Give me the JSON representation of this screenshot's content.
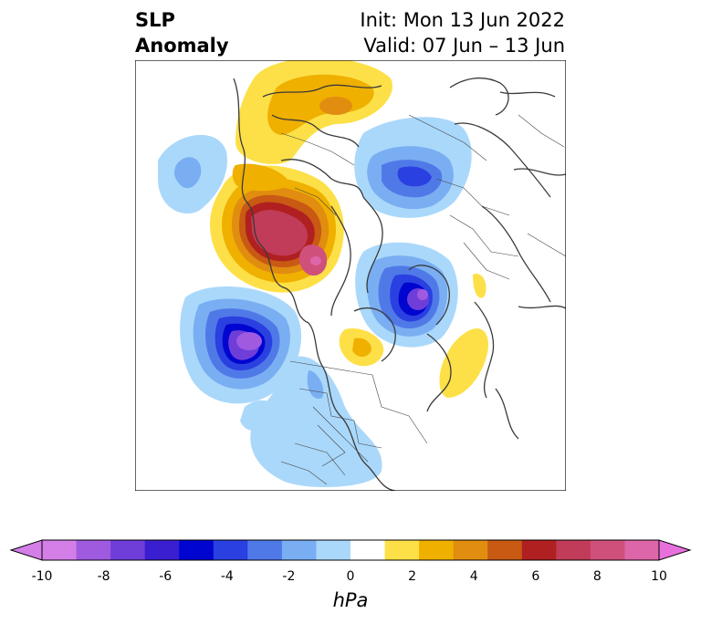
{
  "title": {
    "left_line1": "SLP",
    "left_line2": "Anomaly",
    "right_line1": "Init: Mon 13 Jun 2022",
    "right_line2": "Valid: 07 Jun – 13 Jun"
  },
  "colorbar": {
    "unit": "hPa",
    "ticks": [
      "-10",
      "-8",
      "-6",
      "-4",
      "-2",
      "0",
      "2",
      "4",
      "6",
      "8",
      "10"
    ],
    "colors": [
      "#d47ee8",
      "#a05ae0",
      "#6f3ed9",
      "#3a1fd1",
      "#0005cf",
      "#2a40e0",
      "#5079e8",
      "#7aaef2",
      "#aad8fb",
      "#ffffff",
      "#fde047",
      "#f0b000",
      "#e08d10",
      "#c85a14",
      "#b02020",
      "#c03c58",
      "#d0507c",
      "#dc66a8"
    ],
    "extend_low": "#d47ee8",
    "extend_high": "#e870dd"
  },
  "map": {
    "projection": "north-polar",
    "features": [
      {
        "name": "positive-anomaly-north-pacific",
        "sign": "positive",
        "peak_hpa": 9
      },
      {
        "name": "positive-anomaly-east-siberia",
        "sign": "positive",
        "peak_hpa": 4
      },
      {
        "name": "negative-anomaly-gulf-of-alaska",
        "sign": "negative",
        "peak_hpa": -9
      },
      {
        "name": "negative-anomaly-northern-europe",
        "sign": "negative",
        "peak_hpa": -8
      },
      {
        "name": "negative-anomaly-western-russia",
        "sign": "negative",
        "peak_hpa": -5
      },
      {
        "name": "negative-anomaly-western-us",
        "sign": "negative",
        "peak_hpa": -2
      },
      {
        "name": "positive-anomaly-greenland",
        "sign": "positive",
        "peak_hpa": 3
      },
      {
        "name": "positive-anomaly-north-atlantic",
        "sign": "positive",
        "peak_hpa": 1
      }
    ]
  }
}
